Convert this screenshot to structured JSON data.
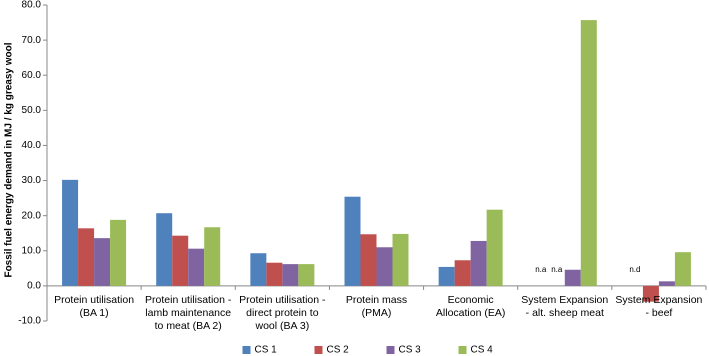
{
  "chart_data": {
    "type": "bar",
    "y_label": "Fossil fuel energy demand in MJ / kg greasy wool",
    "categories": [
      "Protein utilisation (BA 1)",
      "Protein utilisation - lamb maintenance to meat (BA 2)",
      "Protein utilisation - direct protein to wool (BA 3)",
      "Protein mass (PMA)",
      "Economic Allocation (EA)",
      "System Expansion - alt. sheep meat",
      "System Expansion - beef"
    ],
    "series": [
      {
        "name": "CS 1",
        "color": "#4f81bd",
        "values": [
          30.2,
          20.7,
          9.3,
          25.4,
          5.4,
          null,
          null
        ]
      },
      {
        "name": "CS 2",
        "color": "#c0504d",
        "values": [
          16.4,
          14.3,
          6.6,
          14.7,
          7.3,
          null,
          -4.5
        ]
      },
      {
        "name": "CS 3",
        "color": "#8064a2",
        "values": [
          13.6,
          10.6,
          6.2,
          11.0,
          12.8,
          4.6,
          1.3
        ]
      },
      {
        "name": "CS 4",
        "color": "#9bbb59",
        "values": [
          18.8,
          16.7,
          6.2,
          14.8,
          21.7,
          75.7,
          9.6
        ]
      }
    ],
    "annotations": [
      {
        "text": "n.a",
        "category": 5,
        "series": 0
      },
      {
        "text": "n.a",
        "category": 5,
        "series": 1
      },
      {
        "text": "n.d",
        "category": 6,
        "series": 0
      }
    ],
    "ylim": [
      -10,
      80
    ],
    "yticks": [
      {
        "value": -10,
        "label": "-10.0"
      },
      {
        "value": 0,
        "label": "0.0"
      },
      {
        "value": 10,
        "label": "10.0"
      },
      {
        "value": 20,
        "label": "20.0"
      },
      {
        "value": 30,
        "label": "30.0"
      },
      {
        "value": 40,
        "label": "40.0"
      },
      {
        "value": 50,
        "label": "50.0"
      },
      {
        "value": 60,
        "label": "60.0"
      },
      {
        "value": 70,
        "label": "70.0"
      },
      {
        "value": 80,
        "label": "80.0"
      }
    ],
    "grid": false,
    "legend": "bottom"
  }
}
